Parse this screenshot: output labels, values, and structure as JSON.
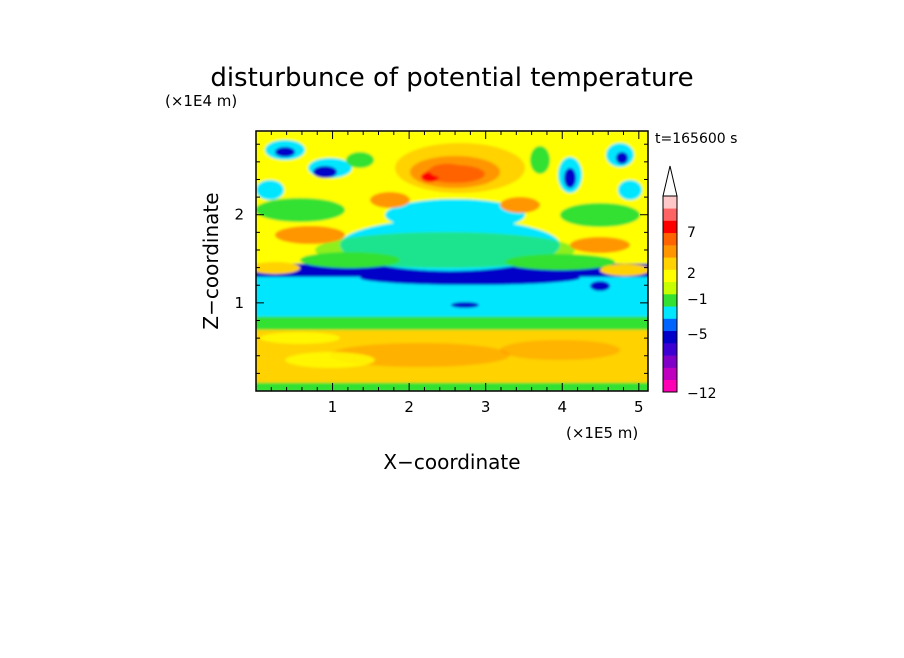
{
  "chart_data": {
    "type": "heatmap",
    "title": "disturbunce of potential temperature",
    "xlabel": "X−coordinate",
    "ylabel": "Z−coordinate",
    "x_unit": "(×1E5 m)",
    "y_unit": "(×1E4 m)",
    "time_label": "t=165600 s",
    "xlim": [
      0,
      5.12
    ],
    "ylim": [
      0,
      2.95
    ],
    "x_ticks": [
      1,
      2,
      3,
      4,
      5
    ],
    "y_ticks": [
      1,
      2
    ],
    "grid": false,
    "colorbar": {
      "ticks": [
        "7",
        "2",
        "−1",
        "−5",
        "−12"
      ],
      "colors": [
        "#ff00b4",
        "#c000c0",
        "#8000c8",
        "#3c00d2",
        "#0000c8",
        "#0064ff",
        "#00e6ff",
        "#32e132",
        "#c8ff00",
        "#ffff00",
        "#ffd200",
        "#ff9600",
        "#ff6400",
        "#ff0000",
        "#ff6464",
        "#ffc8c8"
      ]
    },
    "field": {
      "description_free": true,
      "layers": [
        {
          "z_from": 0.0,
          "z_to": 0.1,
          "level_color": "#32e132"
        },
        {
          "z_from": 0.1,
          "z_to": 0.7,
          "level_color": "#ffd200"
        },
        {
          "z_from": 0.7,
          "z_to": 0.85,
          "level_color": "#32e132"
        },
        {
          "z_from": 0.85,
          "z_to": 1.3,
          "level_color": "#00e6ff"
        },
        {
          "z_from": 1.3,
          "z_to": 1.45,
          "level_color": "#0000c8"
        },
        {
          "z_from": 1.45,
          "z_to": 2.95,
          "level_color": "#ffff00"
        }
      ],
      "hot_spot": {
        "x": 2.5,
        "z": 2.5,
        "level_color": "#ff6400"
      }
    }
  }
}
